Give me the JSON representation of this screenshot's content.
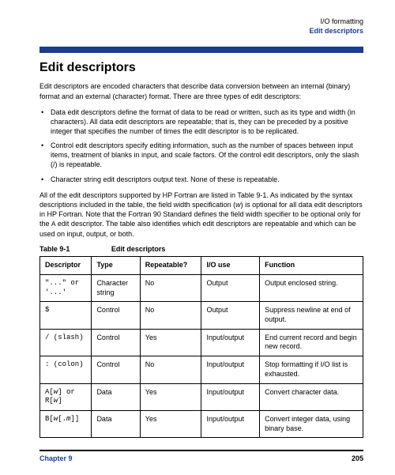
{
  "header": {
    "line1": "I/O formatting",
    "line2": "Edit descriptors"
  },
  "title": "Edit descriptors",
  "intro": "Edit descriptors are encoded characters that describe data conversion between an internal (binary) format and an external (character) format. There are three types of edit descriptors:",
  "bullets": [
    "Data edit descriptors define the format of data to be read or written, such as its type and width (in characters). All data edit descriptors are repeatable; that is, they can be preceded by a positive integer that specifies the number of times the edit descriptor is to be replicated.",
    "Control edit descriptors specify editing information, such as the number of spaces between input items, treatment of blanks in input, and scale factors. Of the control edit descriptors, only the slash (/) is repeatable.",
    "Character string edit descriptors output text. None of these is repeatable."
  ],
  "after_bullets_pre": "All of the edit descriptors supported by HP Fortran are listed in",
  "after_bullets_rest": "Table 9-1. As indicated by the syntax descriptions included in the table, the field width specification (w) is optional for all data edit descriptors in HP Fortran. Note that the Fortran 90 Standard defines the field width specifier to be optional only for the A edit descriptor. The table also identifies which edit descriptors are repeatable and which can be used on input, output, or both.",
  "table_caption_num": "Table 9-1",
  "table_caption_title": "Edit descriptors",
  "columns": [
    "Descriptor",
    "Type",
    "Repeatable?",
    "I/O use",
    "Function"
  ],
  "rows": [
    {
      "descriptor": "\"...\" or '...'",
      "type": "Character string",
      "repeatable": "No",
      "io": "Output",
      "function": "Output enclosed string."
    },
    {
      "descriptor": "$",
      "type": "Control",
      "repeatable": "No",
      "io": "Output",
      "function": "Suppress newline at end of output."
    },
    {
      "descriptor": "/ (slash)",
      "type": "Control",
      "repeatable": "Yes",
      "io": "Input/output",
      "function": "End current record and begin new record."
    },
    {
      "descriptor": ": (colon)",
      "type": "Control",
      "repeatable": "No",
      "io": "Input/output",
      "function": "Stop formatting if I/O list is exhausted."
    },
    {
      "descriptor": "A[w] or R[w]",
      "type": "Data",
      "repeatable": "Yes",
      "io": "Input/output",
      "function": "Convert character data."
    },
    {
      "descriptor": "B[w[.m]]",
      "type": "Data",
      "repeatable": "Yes",
      "io": "Input/output",
      "function": "Convert integer data, using binary base."
    }
  ],
  "footer": {
    "chapter": "Chapter 9",
    "page": "205"
  },
  "colors": {
    "accent": "#1a3e8c",
    "text": "#000000",
    "background": "#ffffff"
  }
}
